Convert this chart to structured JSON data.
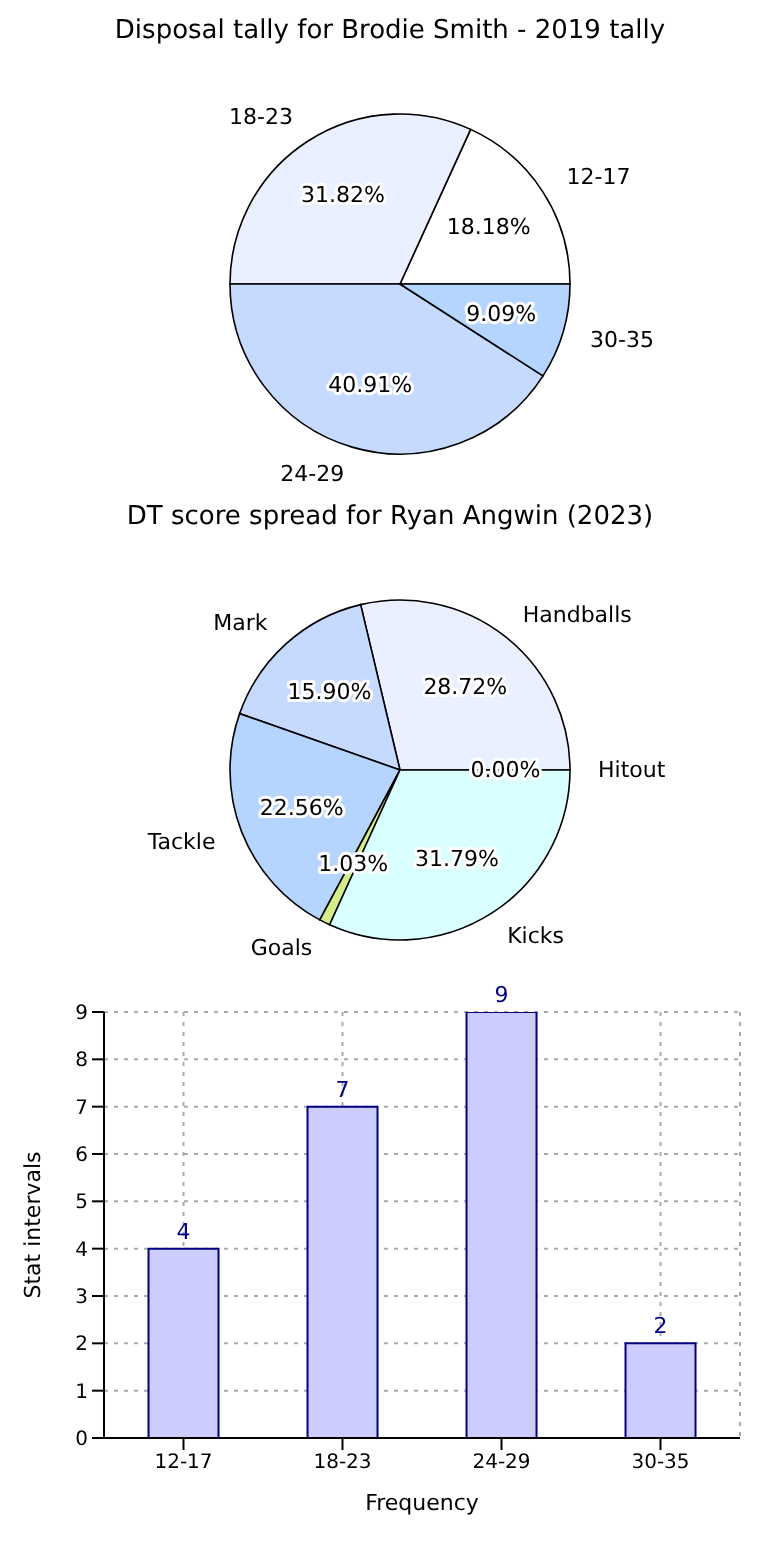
{
  "chart_data": [
    {
      "type": "pie",
      "title": "Disposal tally for Brodie Smith - 2019 tally",
      "categories": [
        "12-17",
        "18-23",
        "24-29",
        "30-35"
      ],
      "values": [
        18.18,
        31.82,
        40.91,
        9.09
      ],
      "colors": [
        "#ffffff",
        "#eaf0ff",
        "#c6d9ff",
        "#b5d5ff"
      ],
      "value_labels": [
        "18.18%",
        "31.82%",
        "40.91%",
        "9.09%"
      ],
      "legend": false
    },
    {
      "type": "pie",
      "title": "DT score spread for Ryan Angwin (2023)",
      "categories": [
        "Handballs",
        "Mark",
        "Tackle",
        "Goals",
        "Kicks",
        "Hitout"
      ],
      "values": [
        28.72,
        15.9,
        22.56,
        1.03,
        31.79,
        0.0
      ],
      "colors": [
        "#eaf0ff",
        "#c6d9ff",
        "#b5d5ff",
        "#d4ec8a",
        "#d9ffff",
        "#f0f0f0"
      ],
      "value_labels": [
        "28.72%",
        "15.90%",
        "22.56%",
        "1.03%",
        "31.79%",
        "0.00%"
      ],
      "legend": false
    },
    {
      "type": "bar",
      "categories": [
        "12-17",
        "18-23",
        "24-29",
        "30-35"
      ],
      "values": [
        4,
        7,
        9,
        2
      ],
      "color": "#ccccff",
      "xlabel": "Frequency",
      "ylabel": "Stat intervals",
      "ylim": [
        0,
        9
      ],
      "yticks": [
        0,
        1,
        2,
        3,
        4,
        5,
        6,
        7,
        8,
        9
      ],
      "grid": true,
      "data_labels": true,
      "legend": false
    }
  ]
}
